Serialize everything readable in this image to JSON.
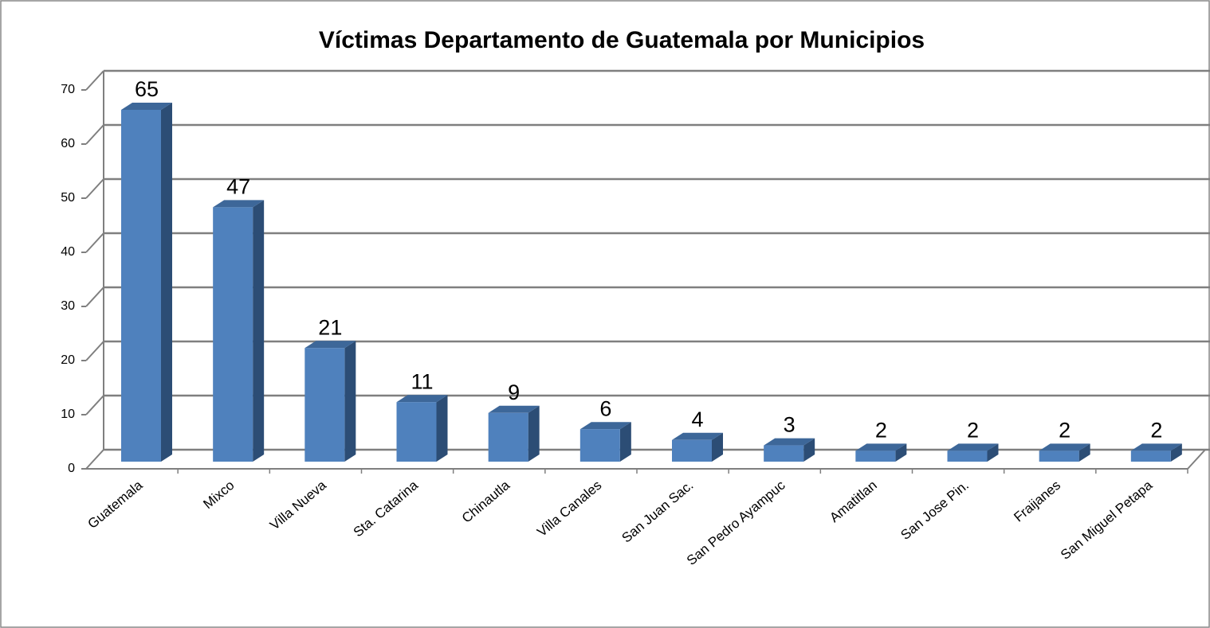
{
  "chart_data": {
    "type": "bar3d",
    "title": "Víctimas Departamento de Guatemala por Municipios",
    "categories": [
      "Guatemala",
      "Mixco",
      "Villa Nueva",
      "Sta. Catarina",
      "Chinautla",
      "Villa Canales",
      "San Juan Sac.",
      "San Pedro Ayampuc",
      "Amatitlan",
      "San Jose Pin.",
      "Fraijanes",
      "San Miguel Petapa"
    ],
    "values": [
      65,
      47,
      21,
      11,
      9,
      6,
      4,
      3,
      2,
      2,
      2,
      2
    ],
    "color": "#4f81bd",
    "ylim": [
      0,
      70
    ],
    "yticks": [
      0,
      10,
      20,
      30,
      40,
      50,
      60,
      70
    ],
    "grid": true
  }
}
